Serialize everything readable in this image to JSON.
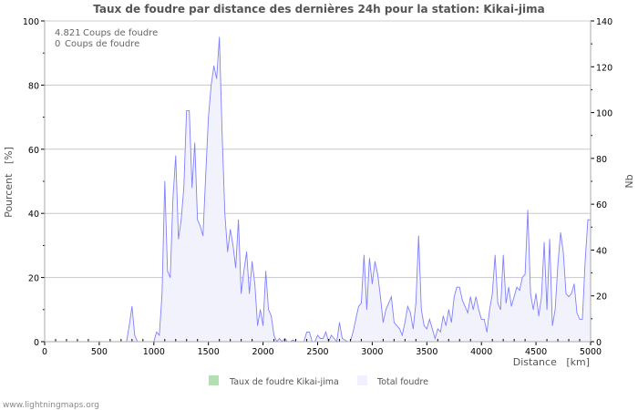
{
  "chart_data": {
    "type": "area",
    "title": "Taux de foudre par distance des dernières 24h pour la station: Kikai-jima",
    "xlabel": "Distance   [km]",
    "ylabel": "Pourcent   [%]",
    "y2label": "Nb",
    "xlim": [
      0,
      5000
    ],
    "ylim": [
      0,
      100
    ],
    "y2lim": [
      0,
      140
    ],
    "x_ticks": [
      0,
      500,
      1000,
      1500,
      2000,
      2500,
      3000,
      3500,
      4000,
      4500,
      5000
    ],
    "y_ticks": [
      0,
      20,
      40,
      60,
      80,
      100
    ],
    "y2_ticks": [
      0,
      20,
      40,
      60,
      80,
      100,
      120,
      140
    ],
    "grid": true,
    "info_lines": [
      {
        "value": "4.821",
        "label": "Coups de foudre"
      },
      {
        "value": "0",
        "label": "Coups de foudre"
      }
    ],
    "legend": [
      {
        "name": "Taux de foudre Kikai-jima",
        "color": "#b3e0b3"
      },
      {
        "name": "Total foudre",
        "color": "#f0f0ff"
      }
    ],
    "legend_position": "bottom",
    "series": [
      {
        "name": "Total foudre",
        "line_color": "#8080ff",
        "fill_color": "#f2f2fc",
        "x_step": 25,
        "values": [
          0,
          0,
          0,
          0,
          0,
          0,
          0,
          0,
          0,
          0,
          0,
          0,
          0,
          0,
          0,
          0,
          0,
          0,
          0,
          0,
          0,
          0,
          0,
          0,
          0,
          0,
          0,
          0,
          0,
          0,
          0,
          5,
          11,
          2,
          0,
          0,
          0,
          0,
          0,
          0,
          0,
          3,
          2,
          15,
          50,
          22,
          20,
          45,
          58,
          32,
          38,
          48,
          72,
          72,
          48,
          62,
          38,
          36,
          33,
          52,
          70,
          80,
          86,
          82,
          95,
          65,
          40,
          28,
          35,
          30,
          23,
          38,
          15,
          22,
          28,
          15,
          25,
          18,
          5,
          10,
          5,
          22,
          10,
          8,
          2,
          0,
          1,
          0,
          1,
          0,
          0,
          0.5,
          0,
          0,
          0,
          0,
          3,
          3,
          0,
          0,
          2,
          1,
          1,
          3,
          0,
          2,
          1,
          0,
          6,
          1,
          0.5,
          0,
          0,
          3,
          7,
          11,
          12,
          27,
          10,
          26,
          18,
          25,
          21,
          14,
          6,
          10,
          12,
          14,
          6,
          5,
          4,
          2,
          6,
          11,
          9,
          4,
          12,
          33,
          10,
          5,
          4,
          7,
          4,
          1,
          4,
          3,
          8,
          5,
          10,
          6,
          14,
          17,
          17,
          13,
          11,
          9,
          14,
          10,
          14,
          10,
          7,
          7,
          3,
          10,
          15,
          27,
          12,
          10,
          27,
          12,
          17,
          11,
          14,
          17,
          16,
          20,
          21,
          41,
          15,
          10,
          15,
          8,
          14,
          31,
          10,
          32,
          5,
          10,
          24,
          34,
          28,
          15,
          14,
          15,
          18,
          9,
          7,
          7,
          25,
          38,
          38
        ]
      }
    ]
  },
  "footer": "www.lightningmaps.org"
}
